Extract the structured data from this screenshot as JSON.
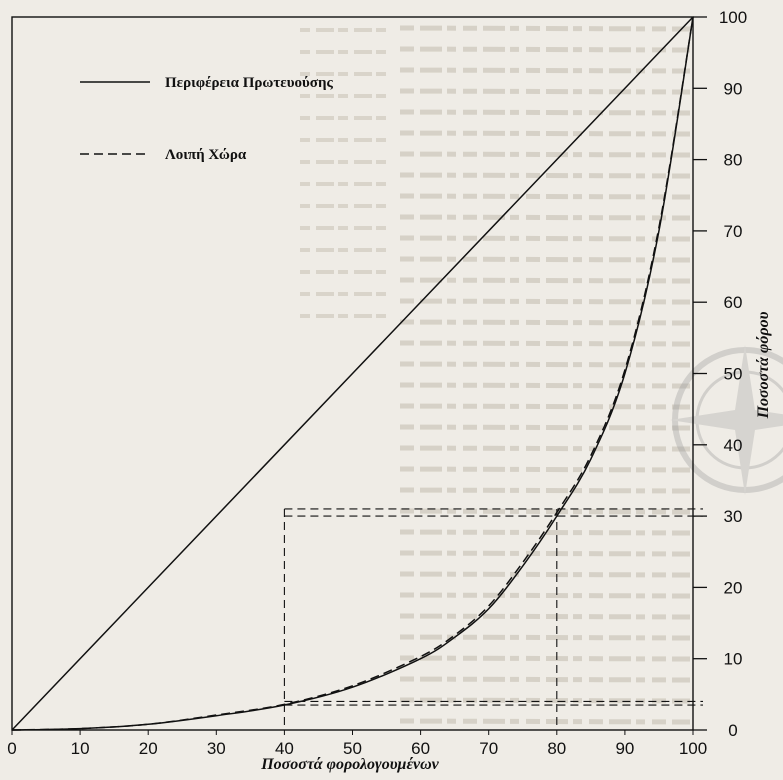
{
  "chart_data": {
    "type": "line",
    "xlabel": "Ποσοστά φορολογουμένων",
    "ylabel": "Ποσοστά φόρου",
    "xlim": [
      0,
      100
    ],
    "ylim": [
      0,
      100
    ],
    "x_ticks": [
      0,
      10,
      20,
      30,
      40,
      50,
      60,
      70,
      80,
      90,
      100
    ],
    "y_ticks": [
      0,
      10,
      20,
      30,
      40,
      50,
      60,
      70,
      80,
      90,
      100
    ],
    "grid": false,
    "legend_position": "top-left",
    "series": [
      {
        "name": "Περιφέρεια Πρωτευούσης",
        "style": "solid",
        "x": [
          0,
          10,
          20,
          30,
          40,
          50,
          60,
          65,
          70,
          75,
          80,
          85,
          90,
          95,
          100
        ],
        "y": [
          0,
          0.2,
          0.8,
          2,
          3.5,
          6,
          10,
          13,
          17,
          23,
          30,
          38,
          50,
          70,
          100
        ]
      },
      {
        "name": "Λοιπή Χώρα",
        "style": "dashed",
        "x": [
          0,
          10,
          20,
          30,
          40,
          50,
          60,
          65,
          70,
          75,
          80,
          85,
          90,
          95,
          100
        ],
        "y": [
          0,
          0.2,
          0.8,
          2.1,
          3.6,
          6.2,
          10.3,
          13.3,
          17.4,
          23.5,
          30.5,
          38.5,
          50.5,
          70.5,
          100
        ]
      },
      {
        "name": "",
        "style": "solid",
        "x": [
          0,
          100
        ],
        "y": [
          0,
          100
        ]
      }
    ],
    "annotations": {
      "reference_x": [
        40,
        80
      ],
      "reference_y": [
        3.5,
        4,
        30,
        31
      ]
    }
  }
}
